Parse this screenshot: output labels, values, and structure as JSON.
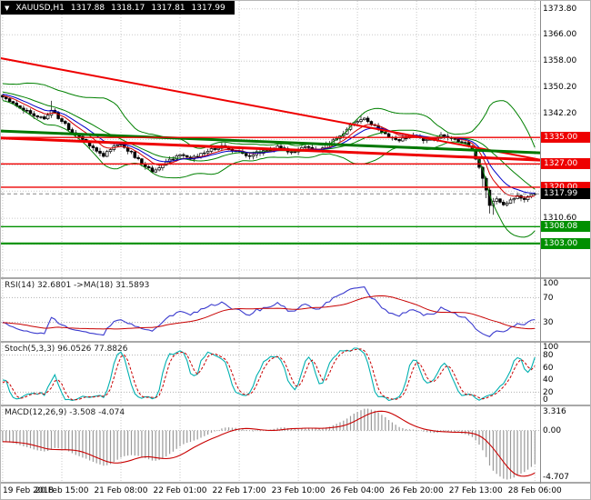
{
  "header": {
    "dropdown_icon": "▼",
    "symbol": "XAUUSD,H1",
    "open": "1317.88",
    "high": "1318.17",
    "low": "1317.81",
    "close": "1317.99"
  },
  "colors": {
    "grid": "#c9c9c9",
    "candle_up": "#ffffff",
    "candle_down": "#000000",
    "bollinger": "#008000",
    "ma_fast": "#d40000",
    "ma_slow": "#0000c8",
    "rsi_line": "#3a3ace",
    "rsi_ma": "#c80000",
    "stoch_main": "#00b0b0",
    "stoch_signal": "#c80000",
    "macd_hist": "#9a9a9a",
    "macd_signal": "#c80000"
  },
  "chart_data": {
    "type": "candlestick",
    "symbol": "XAUUSD",
    "timeframe": "H1",
    "bars": 154,
    "price_range": {
      "top": 1376.2,
      "bottom": 1292.8
    },
    "price_anchors": [
      [
        0,
        1347.2
      ],
      [
        3,
        1345.6
      ],
      [
        8,
        1342.0
      ],
      [
        12,
        1340.6
      ],
      [
        14,
        1343.2
      ],
      [
        17,
        1340.0
      ],
      [
        20,
        1336.4
      ],
      [
        24,
        1333.8
      ],
      [
        27,
        1331.0
      ],
      [
        29,
        1329.6
      ],
      [
        31,
        1331.6
      ],
      [
        34,
        1333.2
      ],
      [
        37,
        1330.2
      ],
      [
        40,
        1327.2
      ],
      [
        43,
        1324.8
      ],
      [
        46,
        1326.6
      ],
      [
        50,
        1329.6
      ],
      [
        54,
        1328.6
      ],
      [
        58,
        1330.6
      ],
      [
        63,
        1332.4
      ],
      [
        67,
        1330.8
      ],
      [
        71,
        1329.6
      ],
      [
        75,
        1331.0
      ],
      [
        79,
        1332.0
      ],
      [
        83,
        1330.6
      ],
      [
        87,
        1332.4
      ],
      [
        90,
        1331.0
      ],
      [
        94,
        1333.0
      ],
      [
        98,
        1336.2
      ],
      [
        101,
        1339.6
      ],
      [
        104,
        1340.6
      ],
      [
        106,
        1339.2
      ],
      [
        109,
        1337.0
      ],
      [
        112,
        1334.6
      ],
      [
        114,
        1334.0
      ],
      [
        118,
        1335.6
      ],
      [
        122,
        1334.0
      ],
      [
        126,
        1335.4
      ],
      [
        130,
        1334.4
      ],
      [
        133,
        1333.4
      ],
      [
        135,
        1331.6
      ],
      [
        137,
        1326.0
      ],
      [
        139,
        1319.0
      ],
      [
        140,
        1314.8
      ],
      [
        142,
        1316.4
      ],
      [
        144,
        1314.6
      ],
      [
        146,
        1316.4
      ],
      [
        148,
        1317.4
      ],
      [
        150,
        1316.2
      ],
      [
        153,
        1317.99
      ]
    ],
    "main_axis": {
      "ticks": [
        {
          "price": 1373.8,
          "label": "1373.80"
        },
        {
          "price": 1366.0,
          "label": "1366.00"
        },
        {
          "price": 1358.0,
          "label": "1358.00"
        },
        {
          "price": 1350.2,
          "label": "1350.20"
        },
        {
          "price": 1342.2,
          "label": "1342.20"
        },
        {
          "price": 1310.6,
          "label": "1310.60"
        }
      ],
      "grid_prices": [
        1373.8,
        1366.0,
        1358.0,
        1350.2,
        1342.2,
        1334.4,
        1326.6,
        1318.8,
        1310.6,
        1302.8,
        1295.0
      ]
    },
    "levels": [
      {
        "price": 1335.0,
        "label": "1335.00",
        "color": "#ee0000",
        "width": 1.4,
        "style": "solid",
        "role": "resistance"
      },
      {
        "price": 1327.0,
        "label": "1327.00",
        "color": "#ee0000",
        "width": 1.4,
        "style": "solid",
        "role": "resistance"
      },
      {
        "price": 1320.0,
        "label": "1320.00",
        "color": "#ee0000",
        "width": 1.4,
        "style": "solid",
        "role": "resistance"
      },
      {
        "price": 1317.99,
        "label": "1317.99",
        "color": "#000000",
        "width": 1,
        "style": "dashed",
        "role": "current-price"
      },
      {
        "price": 1308.08,
        "label": "1308.08",
        "color": "#009000",
        "width": 1.4,
        "style": "solid",
        "role": "support"
      },
      {
        "price": 1303.0,
        "label": "1303.00",
        "color": "#009000",
        "width": 2.2,
        "style": "solid",
        "role": "support"
      }
    ],
    "trendlines": [
      {
        "b1": -2,
        "p1": 1359.2,
        "b2": 156,
        "p2": 1328.0,
        "color": "#ee0000",
        "width": 2
      },
      {
        "b1": -2,
        "p1": 1334.9,
        "b2": 156,
        "p2": 1328.1,
        "color": "#ee0000",
        "width": 3
      },
      {
        "b1": -2,
        "p1": 1337.0,
        "b2": 156,
        "p2": 1330.3,
        "color": "#007800",
        "width": 3
      }
    ],
    "time_axis": {
      "labels": [
        {
          "bar": 0,
          "label": "19 Feb 2018"
        },
        {
          "bar": 17,
          "label": "20 Feb 15:00"
        },
        {
          "bar": 34,
          "label": "21 Feb 08:00"
        },
        {
          "bar": 51,
          "label": "22 Feb 01:00"
        },
        {
          "bar": 68,
          "label": "22 Feb 17:00"
        },
        {
          "bar": 85,
          "label": "23 Feb 10:00"
        },
        {
          "bar": 102,
          "label": "26 Feb 04:00"
        },
        {
          "bar": 119,
          "label": "26 Feb 20:00"
        },
        {
          "bar": 136,
          "label": "27 Feb 13:00"
        },
        {
          "bar": 153,
          "label": "28 Feb 06:00"
        }
      ]
    },
    "indicators": {
      "rsi": {
        "label": "RSI(14) 32.6801  ->MA(18) 31.5893",
        "period": 14,
        "ma_period": 18,
        "value": 32.6801,
        "ma_value": 31.5893,
        "ticks": [
          100,
          70,
          30
        ],
        "levels": [
          70,
          30
        ]
      },
      "stoch": {
        "label": "Stoch(5,3,3) 96.0526 77.8826",
        "k": 96.0526,
        "d": 77.8826,
        "ticks": [
          100,
          80,
          60,
          40,
          20,
          0
        ],
        "levels": [
          80,
          20
        ]
      },
      "macd": {
        "label": "MACD(12,26,9) -3.508 -4.074",
        "value": -3.508,
        "signal": -4.074,
        "ticks": [
          "3.316",
          "0.00",
          "-4.707"
        ]
      }
    }
  }
}
